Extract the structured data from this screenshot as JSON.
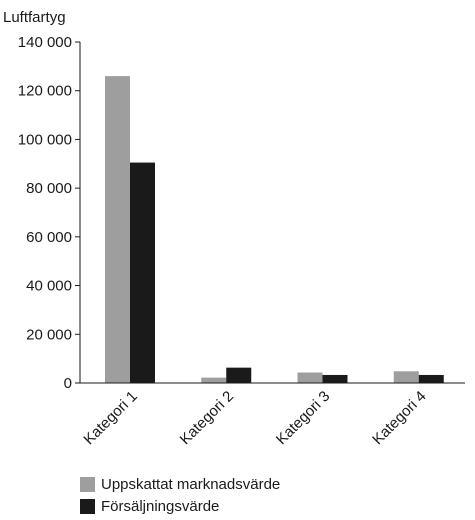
{
  "chart_data": {
    "type": "bar",
    "title": "",
    "ylabel": "Luftfartyg",
    "xlabel": "",
    "categories": [
      "Kategori 1",
      "Kategori 2",
      "Kategori 3",
      "Kategori 4"
    ],
    "series": [
      {
        "name": "Uppskattat marknadsvärde",
        "color": "#9e9e9e",
        "values": [
          126000,
          2200,
          4300,
          4800
        ]
      },
      {
        "name": "Försäljningsvärde",
        "color": "#1a1a1a",
        "values": [
          90500,
          6300,
          3300,
          3300
        ]
      }
    ],
    "ylim": [
      0,
      140000
    ],
    "yticks": [
      0,
      20000,
      40000,
      60000,
      80000,
      100000,
      120000,
      140000
    ],
    "ytick_labels": [
      "0",
      "20 000",
      "40 000",
      "60 000",
      "80 000",
      "100 000",
      "120 000",
      "140 000"
    ],
    "grid": false,
    "legend_position": "bottom-left"
  }
}
